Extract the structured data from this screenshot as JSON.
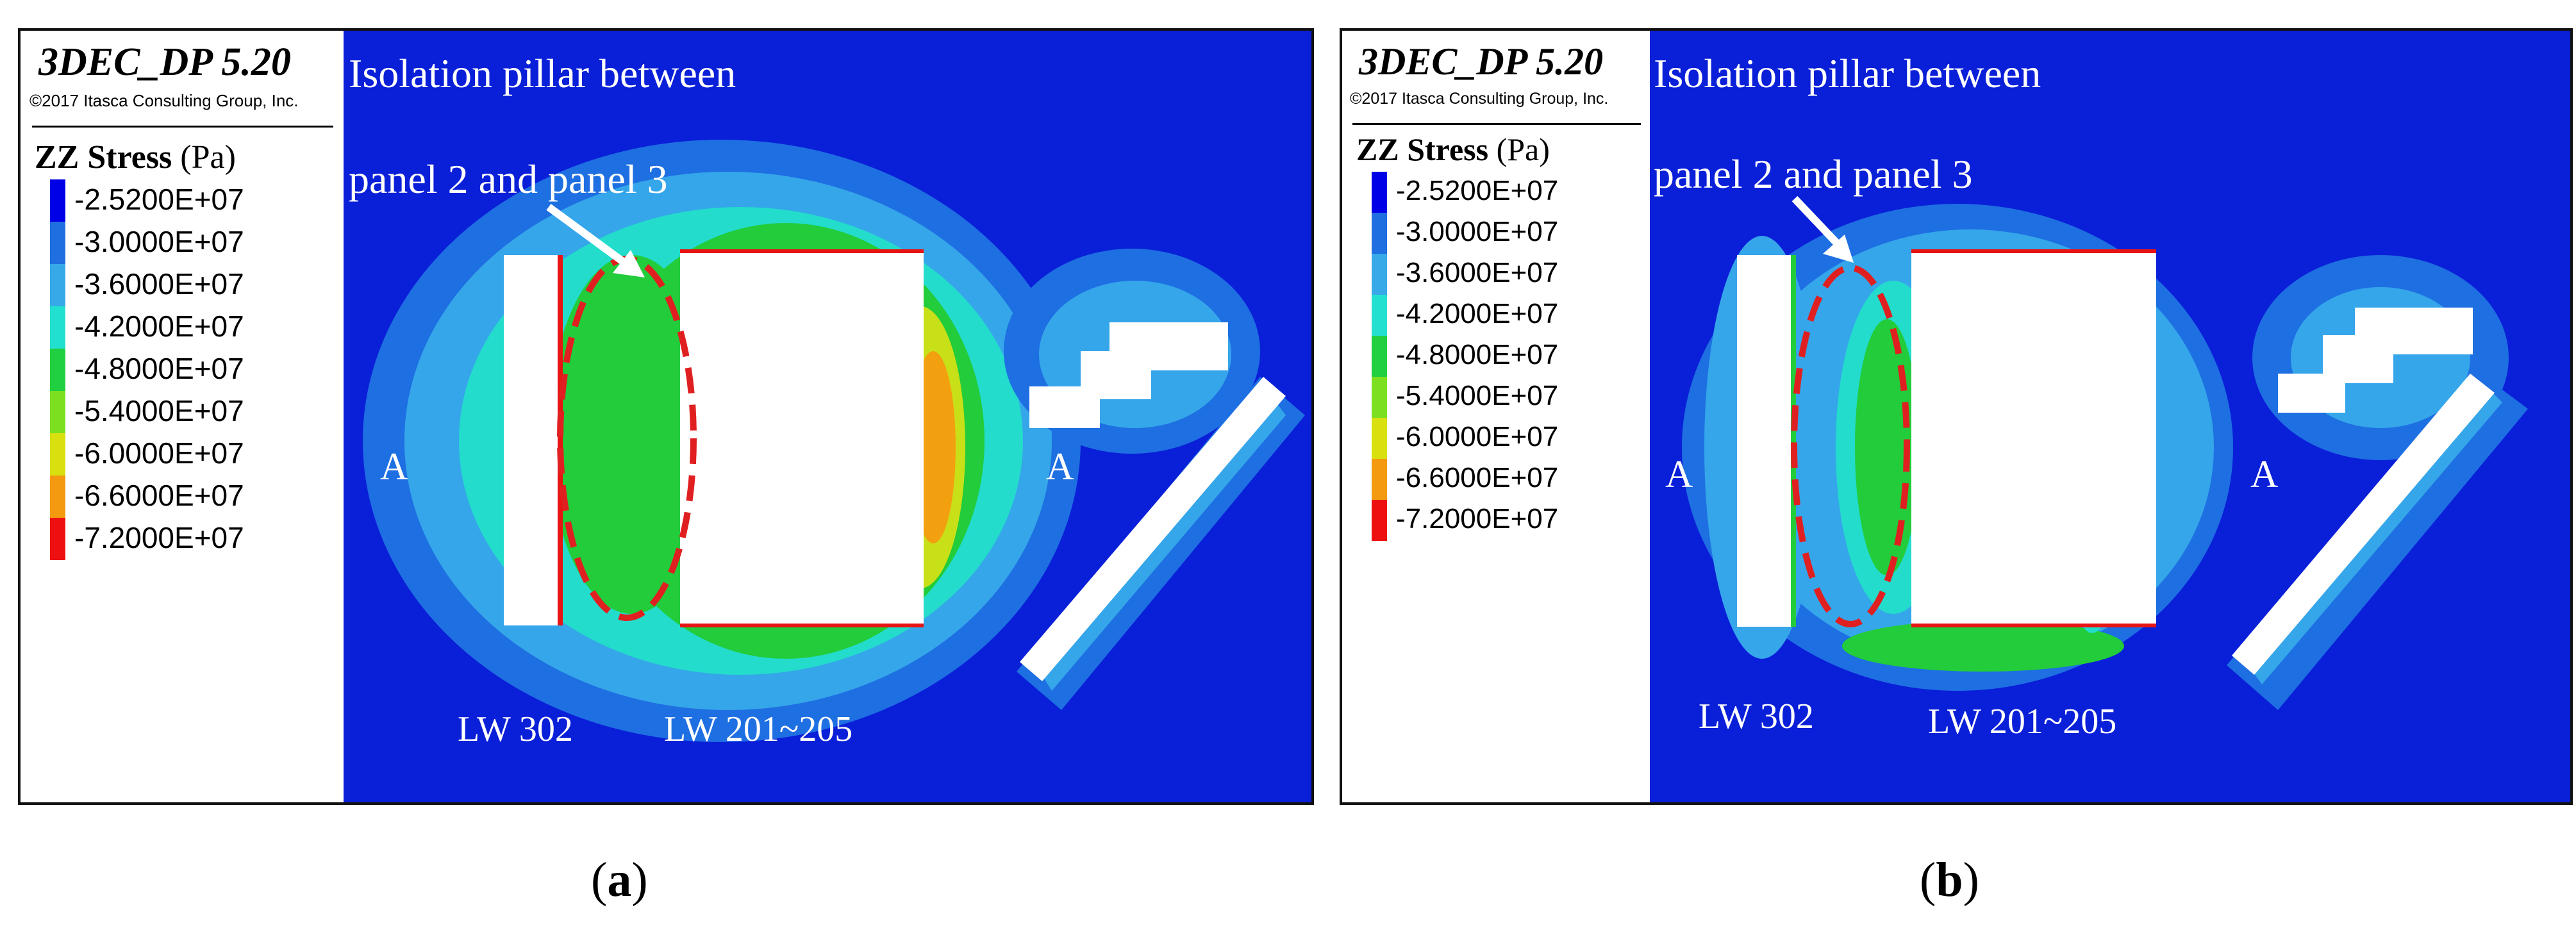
{
  "panels": [
    {
      "id": "a",
      "software": "3DEC_DP 5.20",
      "copyright": "©2017 Itasca Consulting Group, Inc.",
      "variable": "ZZ Stress",
      "unit": "(Pa)",
      "legend": [
        {
          "label": "-2.5200E+07",
          "color": "#0000e6"
        },
        {
          "label": "-3.0000E+07",
          "color": "#1f6fe0"
        },
        {
          "label": "-3.6000E+07",
          "color": "#37a8e8"
        },
        {
          "label": "-4.2000E+07",
          "color": "#22e0d0"
        },
        {
          "label": "-4.8000E+07",
          "color": "#20d040"
        },
        {
          "label": "-5.4000E+07",
          "color": "#7ce020"
        },
        {
          "label": "-6.0000E+07",
          "color": "#d8e010"
        },
        {
          "label": "-6.6000E+07",
          "color": "#f39a10"
        },
        {
          "label": "-7.2000E+07",
          "color": "#ee1010"
        }
      ],
      "annotation_line1": "Isolation pillar between",
      "annotation_line2": "panel 2 and panel 3",
      "label_a_left": "A",
      "label_a_right": "A",
      "label_lw302": "LW 302",
      "label_lw201": "LW 201~205",
      "caption_open": "(",
      "caption_letter": "a",
      "caption_close": ")"
    },
    {
      "id": "b",
      "software": "3DEC_DP 5.20",
      "copyright": "©2017 Itasca Consulting Group, Inc.",
      "variable": "ZZ Stress",
      "unit": "(Pa)",
      "legend": [
        {
          "label": "-2.5200E+07",
          "color": "#0000e6"
        },
        {
          "label": "-3.0000E+07",
          "color": "#1f6fe0"
        },
        {
          "label": "-3.6000E+07",
          "color": "#37a8e8"
        },
        {
          "label": "-4.2000E+07",
          "color": "#22e0d0"
        },
        {
          "label": "-4.8000E+07",
          "color": "#20d040"
        },
        {
          "label": "-5.4000E+07",
          "color": "#7ce020"
        },
        {
          "label": "-6.0000E+07",
          "color": "#d8e010"
        },
        {
          "label": "-6.6000E+07",
          "color": "#f39a10"
        },
        {
          "label": "-7.2000E+07",
          "color": "#ee1010"
        }
      ],
      "annotation_line1": "Isolation pillar between",
      "annotation_line2": "panel 2 and panel 3",
      "label_a_left": "A",
      "label_a_right": "A",
      "label_lw302": "LW 302",
      "label_lw201": "LW 201~205",
      "caption_open": "(",
      "caption_letter": "b",
      "caption_close": ")"
    }
  ],
  "colors": {
    "background_field": "#0a1fd8",
    "halo_outer": "#1e6fe2",
    "halo_mid": "#35a6ea",
    "halo_inner": "#23dccc",
    "zone_green": "#22cc3a",
    "zone_yellow": "#c8e018",
    "zone_orange": "#f3a010",
    "zone_red": "#e81414",
    "excavation": "#ffffff",
    "ellipse": "#e02020"
  }
}
